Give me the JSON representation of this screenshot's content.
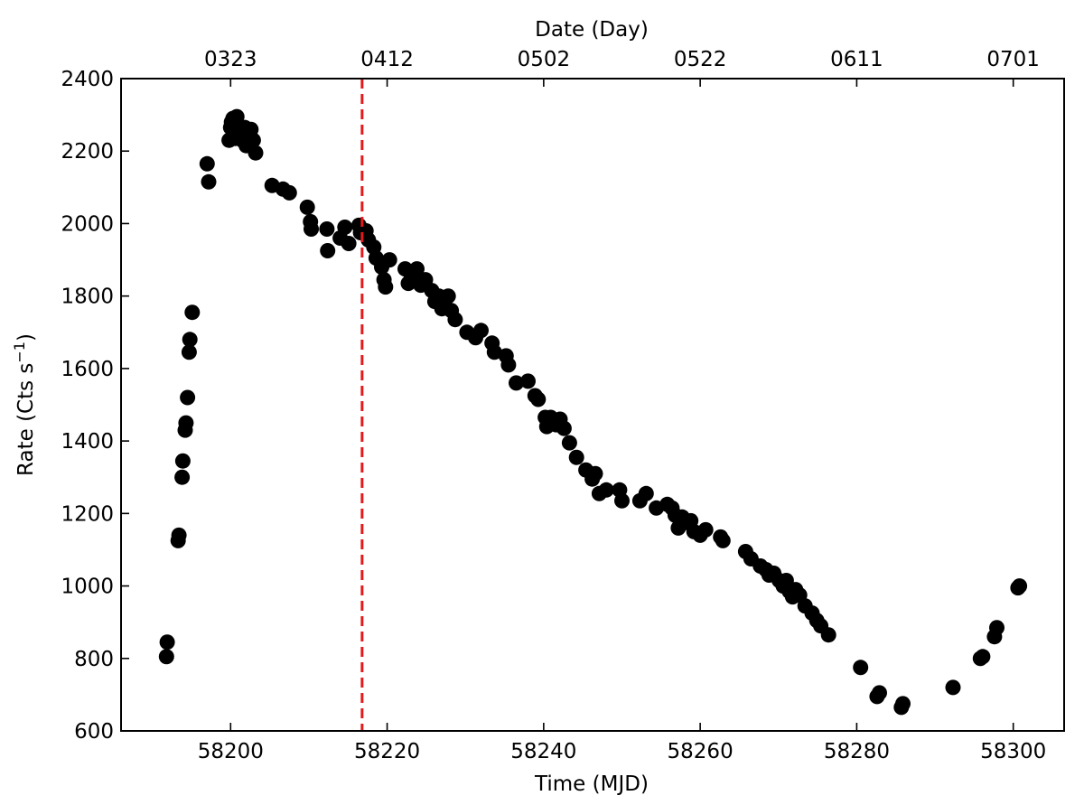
{
  "chart_data": {
    "type": "scatter",
    "xlabel": "Time (MJD)",
    "ylabel": "Rate (Cts s",
    "ylabel_sup": "−1",
    "ylabel_close": ")",
    "top_xlabel": "Date (Day)",
    "xlim": [
      58186,
      58306.5
    ],
    "ylim": [
      600,
      2400
    ],
    "x_ticks": [
      58200,
      58220,
      58240,
      58260,
      58280,
      58300
    ],
    "x_tick_labels": [
      "58200",
      "58220",
      "58240",
      "58260",
      "58280",
      "58300"
    ],
    "y_ticks": [
      600,
      800,
      1000,
      1200,
      1400,
      1600,
      1800,
      2000,
      2200,
      2400
    ],
    "y_tick_labels": [
      "600",
      "800",
      "1000",
      "1200",
      "1400",
      "1600",
      "1800",
      "2000",
      "2200",
      "2400"
    ],
    "top_ticks": [
      58200,
      58220,
      58240,
      58260,
      58280,
      58300
    ],
    "top_tick_labels": [
      "0323",
      "0412",
      "0502",
      "0522",
      "0611",
      "0701"
    ],
    "vline": {
      "x": 58216.8,
      "color": "#e31a1c",
      "style": "dashed"
    },
    "marker_color": "#000000",
    "grid": false,
    "points": [
      [
        58191.8,
        805
      ],
      [
        58191.9,
        845
      ],
      [
        58193.3,
        1125
      ],
      [
        58193.4,
        1140
      ],
      [
        58193.8,
        1300
      ],
      [
        58193.9,
        1345
      ],
      [
        58194.2,
        1430
      ],
      [
        58194.3,
        1450
      ],
      [
        58194.5,
        1520
      ],
      [
        58194.7,
        1645
      ],
      [
        58194.8,
        1680
      ],
      [
        58195.1,
        1755
      ],
      [
        58197.0,
        2165
      ],
      [
        58197.2,
        2115
      ],
      [
        58199.8,
        2230
      ],
      [
        58200.0,
        2265
      ],
      [
        58200.1,
        2280
      ],
      [
        58200.3,
        2290
      ],
      [
        58200.5,
        2250
      ],
      [
        58200.6,
        2235
      ],
      [
        58200.8,
        2295
      ],
      [
        58201.0,
        2265
      ],
      [
        58201.3,
        2240
      ],
      [
        58201.5,
        2230
      ],
      [
        58201.8,
        2265
      ],
      [
        58202.0,
        2215
      ],
      [
        58202.3,
        2245
      ],
      [
        58202.6,
        2260
      ],
      [
        58202.9,
        2230
      ],
      [
        58203.2,
        2195
      ],
      [
        58205.3,
        2105
      ],
      [
        58206.7,
        2095
      ],
      [
        58207.5,
        2085
      ],
      [
        58209.8,
        2045
      ],
      [
        58210.2,
        2005
      ],
      [
        58210.3,
        1985
      ],
      [
        58212.3,
        1985
      ],
      [
        58212.4,
        1925
      ],
      [
        58214.0,
        1960
      ],
      [
        58214.6,
        1990
      ],
      [
        58215.1,
        1945
      ],
      [
        58216.4,
        1995
      ],
      [
        58216.6,
        1975
      ],
      [
        58217.3,
        1980
      ],
      [
        58217.6,
        1955
      ],
      [
        58218.3,
        1935
      ],
      [
        58218.6,
        1905
      ],
      [
        58219.3,
        1880
      ],
      [
        58219.6,
        1845
      ],
      [
        58219.8,
        1825
      ],
      [
        58220.3,
        1900
      ],
      [
        58222.3,
        1875
      ],
      [
        58222.7,
        1835
      ],
      [
        58223.1,
        1855
      ],
      [
        58223.8,
        1875
      ],
      [
        58224.3,
        1830
      ],
      [
        58224.9,
        1845
      ],
      [
        58225.7,
        1815
      ],
      [
        58226.1,
        1785
      ],
      [
        58226.6,
        1800
      ],
      [
        58227.0,
        1765
      ],
      [
        58227.4,
        1790
      ],
      [
        58227.8,
        1800
      ],
      [
        58228.2,
        1760
      ],
      [
        58228.7,
        1735
      ],
      [
        58230.2,
        1700
      ],
      [
        58231.3,
        1685
      ],
      [
        58232.0,
        1705
      ],
      [
        58233.4,
        1670
      ],
      [
        58233.7,
        1645
      ],
      [
        58235.2,
        1635
      ],
      [
        58235.5,
        1610
      ],
      [
        58236.5,
        1560
      ],
      [
        58238.0,
        1565
      ],
      [
        58238.9,
        1525
      ],
      [
        58239.3,
        1515
      ],
      [
        58240.2,
        1465
      ],
      [
        58240.4,
        1440
      ],
      [
        58240.9,
        1465
      ],
      [
        58241.6,
        1445
      ],
      [
        58242.1,
        1460
      ],
      [
        58242.6,
        1435
      ],
      [
        58243.3,
        1395
      ],
      [
        58244.2,
        1355
      ],
      [
        58245.4,
        1320
      ],
      [
        58246.2,
        1295
      ],
      [
        58246.6,
        1310
      ],
      [
        58247.1,
        1255
      ],
      [
        58248.0,
        1265
      ],
      [
        58249.7,
        1265
      ],
      [
        58250.0,
        1235
      ],
      [
        58252.3,
        1235
      ],
      [
        58253.1,
        1255
      ],
      [
        58254.4,
        1215
      ],
      [
        58255.8,
        1225
      ],
      [
        58256.4,
        1215
      ],
      [
        58256.8,
        1195
      ],
      [
        58257.2,
        1160
      ],
      [
        58257.7,
        1190
      ],
      [
        58258.3,
        1175
      ],
      [
        58258.8,
        1180
      ],
      [
        58259.2,
        1150
      ],
      [
        58260.0,
        1140
      ],
      [
        58260.7,
        1155
      ],
      [
        58262.6,
        1135
      ],
      [
        58262.9,
        1125
      ],
      [
        58265.8,
        1095
      ],
      [
        58266.5,
        1075
      ],
      [
        58267.7,
        1055
      ],
      [
        58268.4,
        1045
      ],
      [
        58268.8,
        1030
      ],
      [
        58269.4,
        1035
      ],
      [
        58270.1,
        1015
      ],
      [
        58270.6,
        1000
      ],
      [
        58271.0,
        1015
      ],
      [
        58271.4,
        985
      ],
      [
        58271.8,
        970
      ],
      [
        58272.2,
        990
      ],
      [
        58272.7,
        975
      ],
      [
        58273.4,
        945
      ],
      [
        58274.3,
        925
      ],
      [
        58274.9,
        905
      ],
      [
        58275.4,
        890
      ],
      [
        58276.4,
        865
      ],
      [
        58280.5,
        775
      ],
      [
        58282.6,
        695
      ],
      [
        58282.9,
        705
      ],
      [
        58285.7,
        665
      ],
      [
        58285.9,
        675
      ],
      [
        58292.3,
        720
      ],
      [
        58295.8,
        800
      ],
      [
        58296.1,
        805
      ],
      [
        58297.6,
        860
      ],
      [
        58297.9,
        885
      ],
      [
        58300.6,
        995
      ],
      [
        58300.8,
        1000
      ]
    ]
  }
}
